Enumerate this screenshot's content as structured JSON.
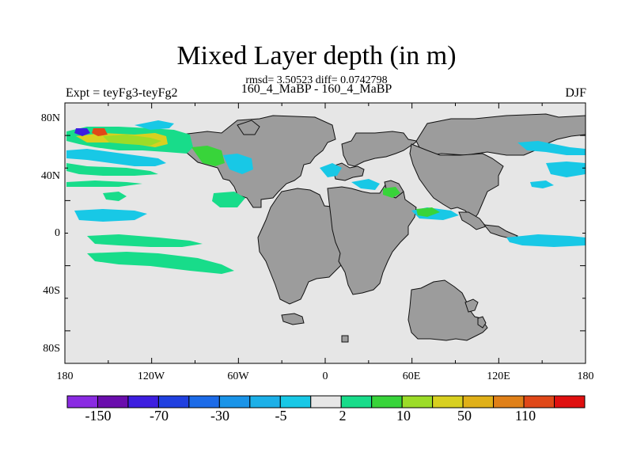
{
  "header": {
    "title": "Mixed Layer depth (in m)",
    "stats": "rmsd= 3.50523 diff= 0.0742798",
    "experiment": "Expt = teyFg3-teyFg2",
    "subtitle": "160_4_MaBP - 160_4_MaBP",
    "season": "DJF"
  },
  "map": {
    "ocean_color": "#e6e6e6",
    "land_color": "#9c9c9c",
    "lat_labels": [
      "80N",
      "40N",
      "0",
      "40S",
      "80S"
    ],
    "lon_labels": [
      "180",
      "120W",
      "60W",
      "0",
      "60E",
      "120E",
      "180"
    ]
  },
  "colorbar": {
    "colors": [
      "#8a2be2",
      "#6a0dad",
      "#3d1ee0",
      "#2040e0",
      "#1c6be8",
      "#1a94e8",
      "#1cb0e8",
      "#18c8e6",
      "#e6e6e6",
      "#18dc8a",
      "#38d43a",
      "#9cdc28",
      "#d8d020",
      "#e0b018",
      "#e08018",
      "#e04818",
      "#e01010"
    ],
    "labels": [
      "-150",
      "-70",
      "-30",
      "-5",
      "2",
      "10",
      "50",
      "110"
    ]
  }
}
